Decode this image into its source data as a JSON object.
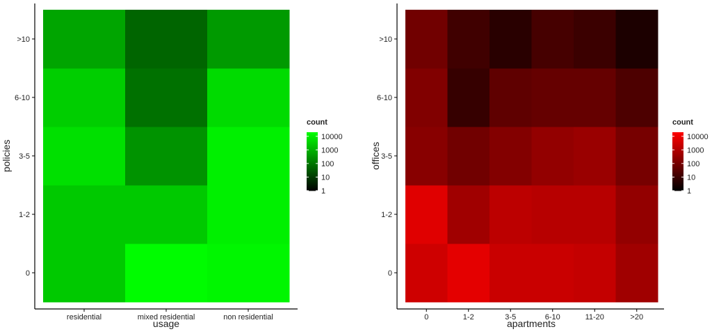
{
  "chart_data": [
    {
      "type": "heatmap",
      "xlabel": "usage",
      "ylabel": "policies",
      "x_categories": [
        "residential",
        "mixed residential",
        "non residential"
      ],
      "y_categories": [
        "0",
        "1-2",
        "3-5",
        "6-10",
        ">10"
      ],
      "color_scale": "log",
      "color_low": "#000000",
      "color_high": "#00ff00",
      "legend": {
        "title": "count",
        "labels": [
          "10000",
          "1000",
          "100",
          "10",
          "1"
        ],
        "values": [
          10000,
          1000,
          100,
          10,
          1
        ],
        "range": [
          1,
          20000
        ]
      },
      "values": [
        [
          2500,
          18000,
          14000
        ],
        [
          2500,
          2500,
          11000
        ],
        [
          6000,
          300,
          11000
        ],
        [
          3000,
          80,
          5000
        ],
        [
          600,
          50,
          400
        ]
      ]
    },
    {
      "type": "heatmap",
      "xlabel": "apartments",
      "ylabel": "offices",
      "x_categories": [
        "0",
        "1-2",
        "3-5",
        "6-10",
        "11-20",
        ">20"
      ],
      "y_categories": [
        "0",
        "1-2",
        "3-5",
        "6-10",
        ">10"
      ],
      "color_scale": "log",
      "color_low": "#000000",
      "color_high": "#ff0000",
      "legend": {
        "title": "count",
        "labels": [
          "10000",
          "1000",
          "100",
          "10",
          "1"
        ],
        "values": [
          10000,
          1000,
          100,
          10,
          1
        ],
        "range": [
          1,
          20000
        ]
      },
      "values": [
        [
          3000,
          7000,
          2500,
          2500,
          2000,
          500
        ],
        [
          6000,
          500,
          1500,
          1200,
          1200,
          300
        ],
        [
          200,
          80,
          160,
          300,
          400,
          100
        ],
        [
          150,
          8,
          40,
          50,
          50,
          20
        ],
        [
          80,
          12,
          5,
          15,
          10,
          3
        ]
      ]
    }
  ]
}
